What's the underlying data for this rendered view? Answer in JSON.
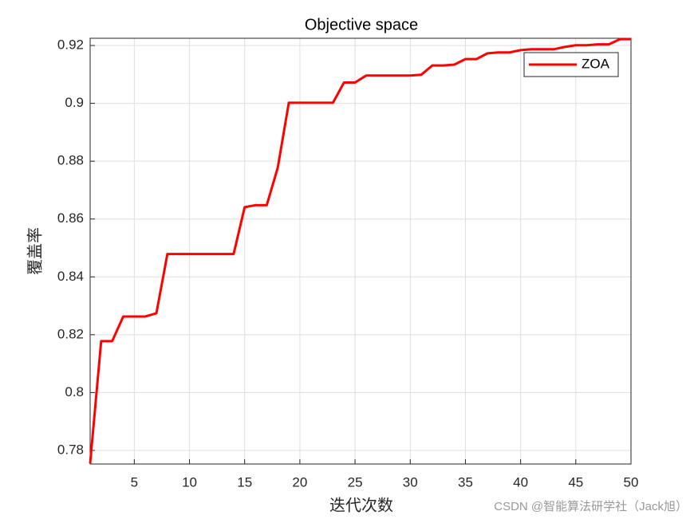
{
  "chart_data": {
    "type": "line",
    "title": "Objective space",
    "xlabel": "迭代次数",
    "ylabel": "覆盖率",
    "x": [
      1,
      2,
      3,
      4,
      5,
      6,
      7,
      8,
      9,
      10,
      11,
      12,
      13,
      14,
      15,
      16,
      17,
      18,
      19,
      20,
      21,
      22,
      23,
      24,
      25,
      26,
      27,
      28,
      29,
      30,
      31,
      32,
      33,
      34,
      35,
      36,
      37,
      38,
      39,
      40,
      41,
      42,
      43,
      44,
      45,
      46,
      47,
      48,
      49,
      50
    ],
    "series": [
      {
        "name": "ZOA",
        "color": "#ff0000",
        "values": [
          0.7755,
          0.8178,
          0.8178,
          0.8263,
          0.8263,
          0.8263,
          0.8274,
          0.8479,
          0.8479,
          0.8479,
          0.8479,
          0.8479,
          0.8479,
          0.8479,
          0.8641,
          0.8648,
          0.8648,
          0.8778,
          0.9002,
          0.9002,
          0.9002,
          0.9002,
          0.9002,
          0.9072,
          0.9072,
          0.9096,
          0.9096,
          0.9096,
          0.9096,
          0.9096,
          0.9099,
          0.9131,
          0.9131,
          0.9134,
          0.9153,
          0.9153,
          0.9173,
          0.9176,
          0.9176,
          0.9184,
          0.9187,
          0.9187,
          0.9187,
          0.9195,
          0.9201,
          0.9201,
          0.9204,
          0.9204,
          0.9222,
          0.9222
        ]
      }
    ],
    "xlim": [
      1,
      50
    ],
    "ylim": [
      0.7753,
      0.9225
    ],
    "xticks": [
      5,
      10,
      15,
      20,
      25,
      30,
      35,
      40,
      45,
      50
    ],
    "yticks": [
      0.78,
      0.8,
      0.82,
      0.84,
      0.86,
      0.88,
      0.9,
      0.92
    ],
    "grid": true,
    "legend": "top-right",
    "watermark": "CSDN @智能算法研学社（Jack旭）"
  }
}
